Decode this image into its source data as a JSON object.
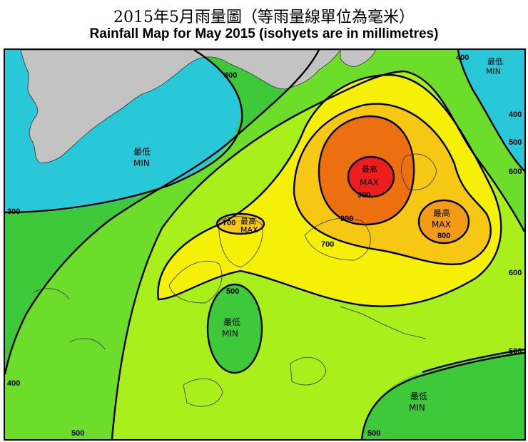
{
  "title_cn": "2015年5月雨量圖（等雨量線單位為毫米）",
  "title_en": "Rainfall Map for May 2015 (isohyets are in millimetres)",
  "colors": {
    "cyan": "#29c8d9",
    "green_dark": "#3ec93a",
    "green_mid": "#6ddd2c",
    "green_light": "#a8ef1c",
    "yellow": "#f6ef08",
    "gold": "#f6c713",
    "orange_light": "#f29b17",
    "orange": "#ec7010",
    "red": "#ee1d1d",
    "land": "#c3c3c3"
  },
  "isohyets": {
    "v300a": "300",
    "v300b": "300",
    "v400a": "400",
    "v400b": "400",
    "v400c": "400",
    "v500a": "500",
    "v500b": "500",
    "v500c": "500",
    "v500d": "500",
    "v500e": "500",
    "v600a": "600",
    "v600b": "600",
    "v700a": "700",
    "v700b": "700",
    "v800a": "800",
    "v800b": "800",
    "v900": "900"
  },
  "zones": {
    "min_nw_cn": "最低",
    "min_nw_en": "MIN",
    "min_ne_cn": "最低",
    "min_ne_en": "MIN",
    "min_c_cn": "最低",
    "min_c_en": "MIN",
    "min_se_cn": "最低",
    "min_se_en": "MIN",
    "max_w_cn": "最高",
    "max_w_en": "MAX",
    "max_c_cn": "最高",
    "max_c_en": "MAX",
    "max_e_cn": "最高",
    "max_e_en": "MAX"
  }
}
